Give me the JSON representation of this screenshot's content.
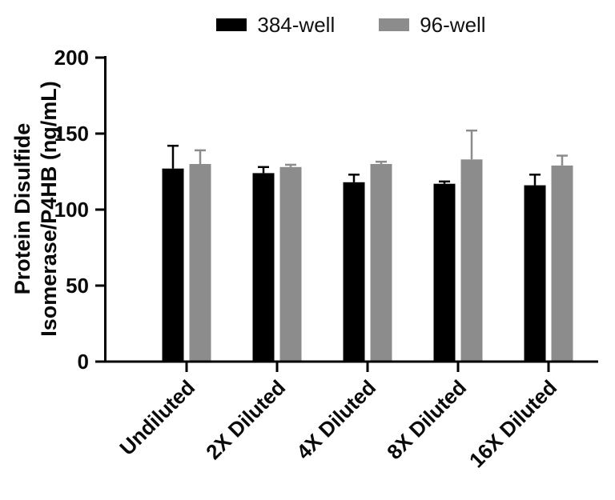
{
  "figure": {
    "background_color": "#ffffff",
    "axis_color": "#000000",
    "text_color": "#0a0a0a"
  },
  "chart_data": {
    "type": "bar",
    "title": "",
    "categories": [
      "Undiluted",
      "2X Diluted",
      "4X Diluted",
      "8X Diluted",
      "16X Diluted"
    ],
    "series": [
      {
        "name": "384-well",
        "color": "#000000",
        "values": [
          127,
          124,
          118,
          117,
          116
        ],
        "errors_up": [
          15,
          4,
          5,
          1.5,
          7
        ]
      },
      {
        "name": "96-well",
        "color": "#8c8c8c",
        "values": [
          130,
          128,
          130,
          133,
          129
        ],
        "errors_up": [
          9,
          1.5,
          1.5,
          19,
          6.5
        ]
      }
    ],
    "xlabel": "",
    "ylabel": "Protein Disulfide Isomerase/P4HB (ng/mL)",
    "ylabel_lines": [
      "Protein Disulfide",
      "Isomerase/P4HB (ng/mL)"
    ],
    "ylim": [
      0,
      200
    ],
    "yticks": [
      0,
      50,
      100,
      150,
      200
    ],
    "grid": false,
    "legend_position": "top",
    "error_bars": "upper-only"
  }
}
